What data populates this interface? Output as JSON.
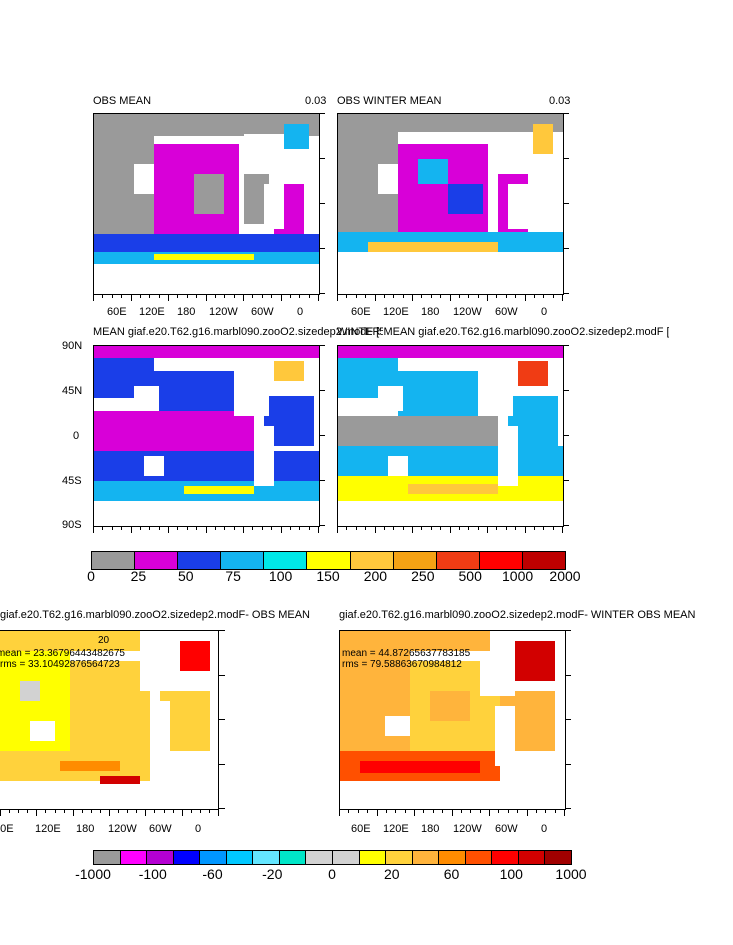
{
  "panels": [
    {
      "title_left": "OBS MEAN",
      "title_right": "0.03",
      "land_mask": true
    },
    {
      "title_left": "OBS WINTER MEAN",
      "title_right": "0.03",
      "land_mask": true
    },
    {
      "title_left": "MEAN giaf.e20.T62.g16.marbl090.zooO2.sizedep2.modF [5-15]",
      "title_right": ""
    },
    {
      "title_left": "WINTER MEAN giaf.e20.T62.g16.marbl090.zooO2.sizedep2.modF [5-15]",
      "title_right": ""
    },
    {
      "title_left": "giaf.e20.T62.g16.marbl090.zooO2.sizedep2.modF- OBS MEAN",
      "center_label": "20",
      "mean_text": "mean = 23.36796443482675",
      "rms_text": "rms = 33.10492876564723"
    },
    {
      "title_left": "giaf.e20.T62.g16.marbl090.zooO2.sizedep2.modF- WINTER OBS MEAN",
      "mean_text": "mean = 44.87265637783185",
      "rms_text": "rms = 79.58863670984812"
    }
  ],
  "lon_labels": [
    "60E",
    "120E",
    "180",
    "120W",
    "60W",
    "0"
  ],
  "lat_labels": [
    "90N",
    "45N",
    "0",
    "45S",
    "90S"
  ],
  "colorbar_top": {
    "colors": [
      "#9a9a9a",
      "#d800d8",
      "#1a3ee8",
      "#14b4f0",
      "#00e8e8",
      "#ffff00",
      "#ffc83c",
      "#f5a214",
      "#f03c14",
      "#ff0000",
      "#be0000"
    ],
    "labels": [
      "0",
      "25",
      "50",
      "75",
      "100",
      "150",
      "200",
      "250",
      "500",
      "1000",
      "2000"
    ]
  },
  "colorbar_bottom": {
    "colors": [
      "#9a9a9a",
      "#ff00ff",
      "#b400d2",
      "#0000ff",
      "#0096ff",
      "#00c8ff",
      "#64e6ff",
      "#00e6c8",
      "#d2d2d2",
      "#d2d2d2",
      "#ffff00",
      "#ffd23c",
      "#ffb43c",
      "#ff8c00",
      "#ff5000",
      "#ff0000",
      "#d20000",
      "#a00000"
    ],
    "labels": [
      "-1000",
      "-100",
      "-60",
      "-20",
      "0",
      "20",
      "60",
      "100",
      "1000"
    ]
  }
}
